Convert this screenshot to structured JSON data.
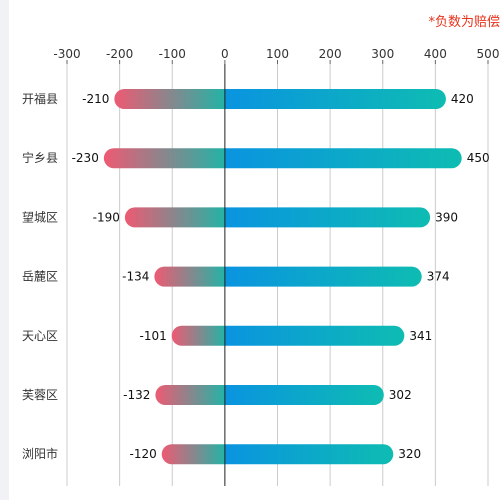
{
  "chart_data": {
    "type": "bar",
    "orientation": "horizontal",
    "note": "*负数为赔偿",
    "xlim": [
      -300,
      500
    ],
    "xticks": [
      -300,
      -200,
      -100,
      0,
      100,
      200,
      300,
      400,
      500
    ],
    "grid": true,
    "categories": [
      "开福县",
      "宁乡县",
      "望城区",
      "岳麓区",
      "天心区",
      "芙蓉区",
      "浏阳市"
    ],
    "series": [
      {
        "values": [
          -210,
          -230,
          -190,
          -134,
          -101,
          -132,
          -120
        ]
      },
      {
        "values": [
          420,
          450,
          390,
          374,
          341,
          302,
          320
        ]
      }
    ],
    "colors": {
      "negative_start": "#ee5a73",
      "negative_end": "#23b3a6",
      "positive_start": "#0a94e0",
      "positive_end": "#0ebcb2",
      "grid": "#cccccc",
      "zero_line": "#222222",
      "note": "#e8341c"
    }
  }
}
